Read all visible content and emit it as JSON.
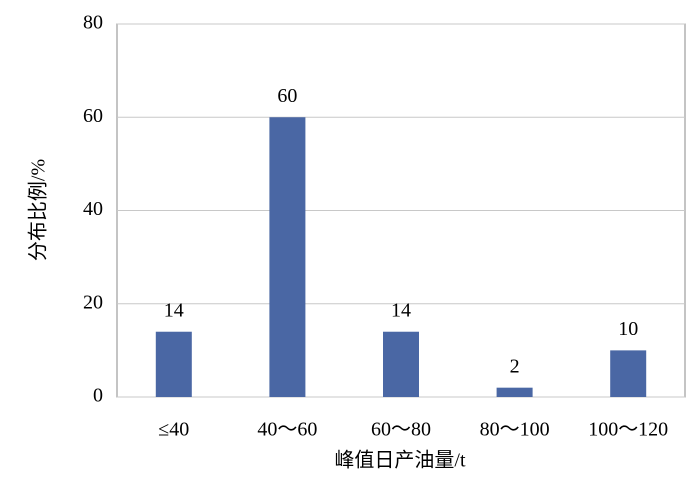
{
  "chart_data": {
    "type": "bar",
    "x_label": "峰值日产油量/t",
    "y_label": "分布比例/%",
    "categories": [
      "≤40",
      "40～60",
      "60～80",
      "80～100",
      "100～120"
    ],
    "values": [
      14,
      60,
      14,
      2,
      10
    ],
    "color": "#4a67a4",
    "ylim": [
      0,
      80
    ],
    "yticks": [
      0,
      20,
      40,
      60,
      80
    ],
    "grid": true
  }
}
